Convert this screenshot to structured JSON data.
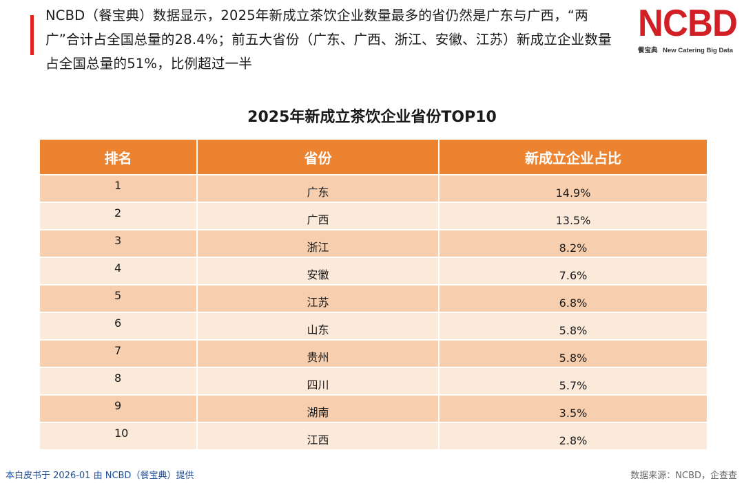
{
  "intro_text": "NCBD（餐宝典）数据显示，2025年新成立茶饮企业数量最多的省仍然是广东与广西，“两广”合计占全国总量的28.4%；前五大省份（广东、广西、浙江、安徽、江苏）新成立企业数量占全国总量的51%，比例超过一半",
  "logo": {
    "wordmark": "NCBD",
    "chinese": "餐宝典",
    "english": "New Catering Big Data"
  },
  "table": {
    "title": "2025年新成立茶饮企业省份TOP10",
    "headers": {
      "rank": "排名",
      "province": "省份",
      "share": "新成立企业占比"
    },
    "rows": [
      {
        "rank": "1",
        "province": "广东",
        "share": "14.9%"
      },
      {
        "rank": "2",
        "province": "广西",
        "share": "13.5%"
      },
      {
        "rank": "3",
        "province": "浙江",
        "share": "8.2%"
      },
      {
        "rank": "4",
        "province": "安徽",
        "share": "7.6%"
      },
      {
        "rank": "5",
        "province": "江苏",
        "share": "6.8%"
      },
      {
        "rank": "6",
        "province": "山东",
        "share": "5.8%"
      },
      {
        "rank": "7",
        "province": "贵州",
        "share": "5.8%"
      },
      {
        "rank": "8",
        "province": "四川",
        "share": "5.7%"
      },
      {
        "rank": "9",
        "province": "湖南",
        "share": "3.5%"
      },
      {
        "rank": "10",
        "province": "江西",
        "share": "2.8%"
      }
    ]
  },
  "footer": {
    "left": "本白皮书于 2026-01 由 NCBD（餐宝典）提供",
    "right": "数据来源：NCBD，企查查"
  },
  "colors": {
    "accent_red": "#e2231a",
    "brand_red": "#d21f26",
    "header_orange": "#ec8330",
    "row_dark": "#f8cfae",
    "row_light": "#fbe9da",
    "footer_blue": "#1f4e96"
  }
}
